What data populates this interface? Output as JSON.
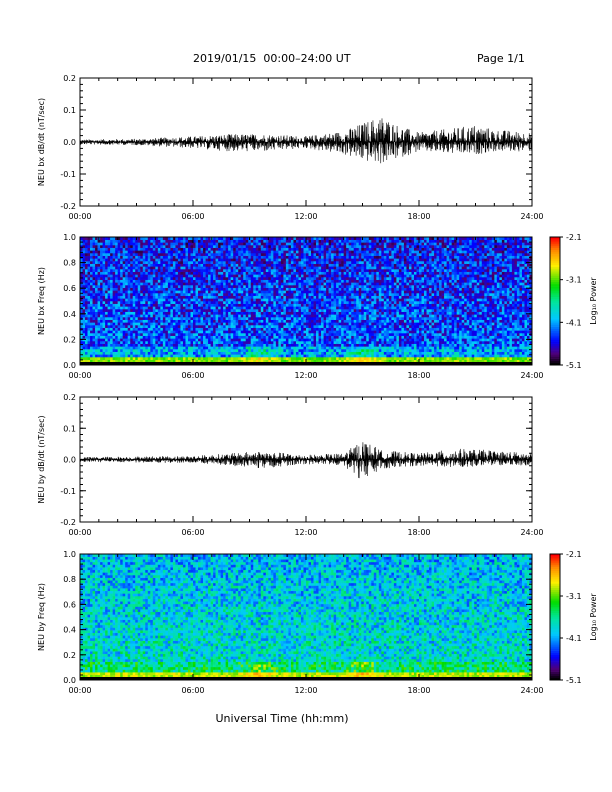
{
  "header": {
    "title": "2019/01/15  00:00–24:00 UT",
    "page": "Page 1/1"
  },
  "xlabel": "Universal Time (hh:mm)",
  "chart_data": [
    {
      "type": "line",
      "ylabel": "NEU bx dB/dt (nT/sec)",
      "xlim": [
        "00:00",
        "24:00"
      ],
      "x_ticks": [
        "00:00",
        "06:00",
        "12:00",
        "18:00",
        "24:00"
      ],
      "ylim": [
        -0.2,
        0.2
      ],
      "y_ticks": [
        "-0.2",
        "-0.1",
        "0.0",
        "0.1",
        "0.2"
      ],
      "envelope": {
        "hours": [
          0,
          3,
          6,
          8,
          10,
          12,
          14,
          15,
          16,
          17,
          18,
          20,
          21,
          22,
          24
        ],
        "max": [
          0.008,
          0.01,
          0.018,
          0.025,
          0.025,
          0.018,
          0.035,
          0.06,
          0.085,
          0.05,
          0.03,
          0.045,
          0.055,
          0.04,
          0.03
        ],
        "min": [
          -0.008,
          -0.01,
          -0.02,
          -0.03,
          -0.03,
          -0.02,
          -0.04,
          -0.06,
          -0.07,
          -0.05,
          -0.03,
          -0.04,
          -0.04,
          -0.03,
          -0.03
        ]
      }
    },
    {
      "type": "heatmap",
      "ylabel": "NEU bx Freq (Hz)",
      "xlim": [
        "00:00",
        "24:00"
      ],
      "x_ticks": [
        "00:00",
        "06:00",
        "12:00",
        "18:00",
        "24:00"
      ],
      "ylim": [
        0,
        1.0
      ],
      "y_ticks": [
        "0.0",
        "0.2",
        "0.4",
        "0.6",
        "0.8",
        "1.0"
      ],
      "colorbar": {
        "label": "Log₁₀ Power",
        "range": [
          -5.1,
          -2.1
        ],
        "ticks": [
          "-2.1",
          "-3.1",
          "-4.1",
          "-5.1"
        ]
      },
      "base_log_power": -4.3,
      "low_freq_log_power": -3.0,
      "activity_hours": [
        9.5,
        15.0
      ]
    },
    {
      "type": "line",
      "ylabel": "NEU by dB/dt (nT/sec)",
      "xlim": [
        "00:00",
        "24:00"
      ],
      "x_ticks": [
        "00:00",
        "06:00",
        "12:00",
        "18:00",
        "24:00"
      ],
      "ylim": [
        -0.2,
        0.2
      ],
      "y_ticks": [
        "-0.2",
        "-0.1",
        "0.0",
        "0.1",
        "0.2"
      ],
      "envelope": {
        "hours": [
          0,
          3,
          6,
          8,
          9.5,
          12,
          14,
          15,
          16,
          18,
          20,
          22,
          24
        ],
        "max": [
          0.008,
          0.01,
          0.012,
          0.02,
          0.028,
          0.015,
          0.02,
          0.065,
          0.03,
          0.02,
          0.035,
          0.03,
          0.02
        ],
        "min": [
          -0.008,
          -0.01,
          -0.012,
          -0.02,
          -0.03,
          -0.015,
          -0.02,
          -0.07,
          -0.03,
          -0.02,
          -0.025,
          -0.02,
          -0.02
        ]
      }
    },
    {
      "type": "heatmap",
      "ylabel": "NEU by Freq (Hz)",
      "xlim": [
        "00:00",
        "24:00"
      ],
      "x_ticks": [
        "00:00",
        "06:00",
        "12:00",
        "18:00",
        "24:00"
      ],
      "ylim": [
        0,
        1.0
      ],
      "y_ticks": [
        "0.0",
        "0.2",
        "0.4",
        "0.6",
        "0.8",
        "1.0"
      ],
      "colorbar": {
        "label": "Log₁₀ Power",
        "range": [
          -5.1,
          -2.1
        ],
        "ticks": [
          "-2.1",
          "-3.1",
          "-4.1",
          "-5.1"
        ]
      },
      "base_log_power": -3.75,
      "low_freq_log_power": -2.9,
      "activity_hours": [
        9.5,
        15.0
      ]
    }
  ]
}
